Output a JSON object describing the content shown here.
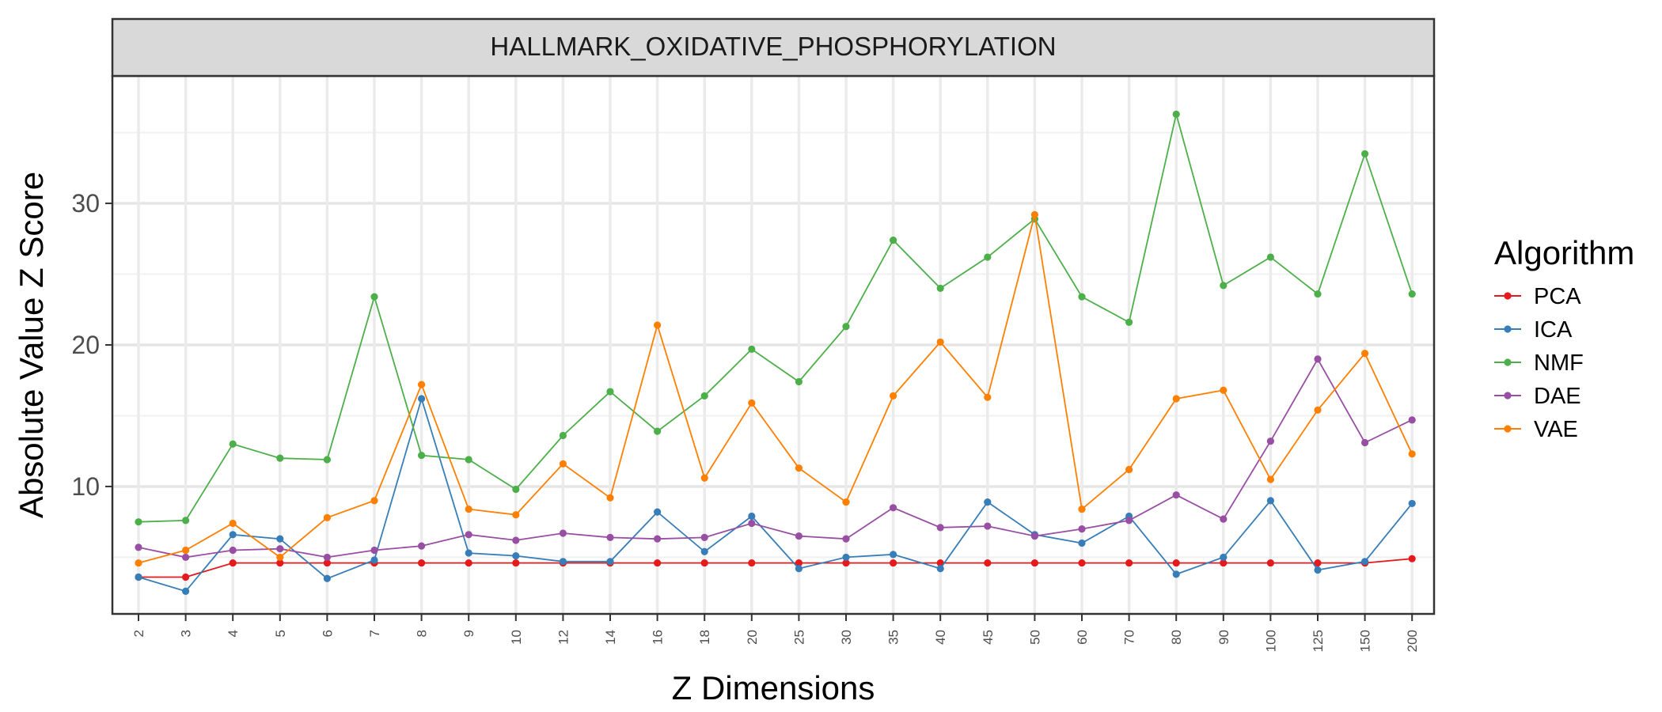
{
  "chart_data": {
    "type": "line",
    "title": "HALLMARK_OXIDATIVE_PHOSPHORYLATION",
    "xlabel": "Z Dimensions",
    "ylabel": "Absolute Value Z Score",
    "categories": [
      "2",
      "3",
      "4",
      "5",
      "6",
      "7",
      "8",
      "9",
      "10",
      "12",
      "14",
      "16",
      "18",
      "20",
      "25",
      "30",
      "35",
      "40",
      "45",
      "50",
      "60",
      "70",
      "80",
      "90",
      "100",
      "125",
      "150",
      "200"
    ],
    "ylim": [
      1,
      39
    ],
    "yticks": [
      10,
      20,
      30
    ],
    "grid": true,
    "legend_title": "Algorithm",
    "legend_position": "right",
    "series": [
      {
        "name": "PCA",
        "color": "#e41a1c",
        "values": [
          3.6,
          3.6,
          4.6,
          4.6,
          4.6,
          4.6,
          4.6,
          4.6,
          4.6,
          4.6,
          4.6,
          4.6,
          4.6,
          4.6,
          4.6,
          4.6,
          4.6,
          4.6,
          4.6,
          4.6,
          4.6,
          4.6,
          4.6,
          4.6,
          4.6,
          4.6,
          4.6,
          4.9
        ]
      },
      {
        "name": "ICA",
        "color": "#377eb8",
        "values": [
          3.6,
          2.6,
          6.6,
          6.3,
          3.5,
          4.8,
          16.2,
          5.3,
          5.1,
          4.7,
          4.7,
          8.2,
          5.4,
          7.9,
          4.2,
          5.0,
          5.2,
          4.2,
          8.9,
          6.6,
          6.0,
          7.9,
          3.8,
          5.0,
          9.0,
          4.1,
          4.7,
          8.8
        ]
      },
      {
        "name": "NMF",
        "color": "#4daf4a",
        "values": [
          7.5,
          7.6,
          13.0,
          12.0,
          11.9,
          23.4,
          12.2,
          11.9,
          9.8,
          13.6,
          16.7,
          13.9,
          16.4,
          19.7,
          17.4,
          21.3,
          27.4,
          24.0,
          26.2,
          28.9,
          23.4,
          21.6,
          36.3,
          24.2,
          26.2,
          23.6,
          33.5,
          23.6
        ]
      },
      {
        "name": "DAE",
        "color": "#984ea3",
        "values": [
          5.7,
          5.0,
          5.5,
          5.6,
          5.0,
          5.5,
          5.8,
          6.6,
          6.2,
          6.7,
          6.4,
          6.3,
          6.4,
          7.4,
          6.5,
          6.3,
          8.5,
          7.1,
          7.2,
          6.5,
          7.0,
          7.6,
          9.4,
          7.7,
          13.2,
          19.0,
          13.1,
          14.7
        ]
      },
      {
        "name": "VAE",
        "color": "#ff7f00",
        "values": [
          4.6,
          5.5,
          7.4,
          5.0,
          7.8,
          9.0,
          17.2,
          8.4,
          8.0,
          11.6,
          9.2,
          21.4,
          10.6,
          15.9,
          11.3,
          8.9,
          16.4,
          20.2,
          16.3,
          29.2,
          8.4,
          11.2,
          16.2,
          16.8,
          10.5,
          15.4,
          19.4,
          12.3
        ]
      }
    ]
  }
}
